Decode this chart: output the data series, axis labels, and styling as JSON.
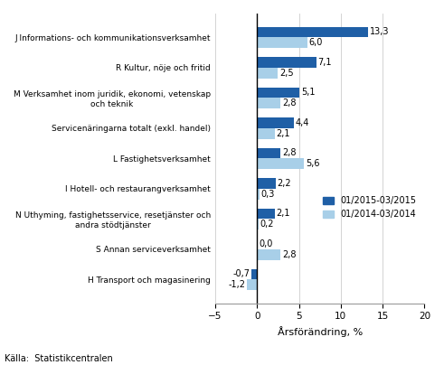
{
  "categories": [
    "H Transport och magasinering",
    "S Annan serviceverksamhet",
    "N Uthyming, fastighetsservice, resetjänster och\nandra stödtjänster",
    "I Hotell- och restaurangverksamhet",
    "L Fastighetsverksamhet",
    "Servicenäringarna totalt (exkl. handel)",
    "M Verksamhet inom juridik, ekonomi, vetenskap\noch teknik",
    "R Kultur, nöje och fritid",
    "J Informations- och kommunikationsverksamhet"
  ],
  "values_2015": [
    -0.7,
    0.0,
    2.1,
    2.2,
    2.8,
    4.4,
    5.1,
    7.1,
    13.3
  ],
  "values_2014": [
    -1.2,
    2.8,
    0.2,
    0.3,
    5.6,
    2.1,
    2.8,
    2.5,
    6.0
  ],
  "labels_2015": [
    "-0,7",
    "0,0",
    "2,1",
    "2,2",
    "2,8",
    "4,4",
    "5,1",
    "7,1",
    "13,3"
  ],
  "labels_2014": [
    "-1,2",
    "2,8",
    "0,2",
    "0,3",
    "5,6",
    "2,1",
    "2,8",
    "2,5",
    "6,0"
  ],
  "color_2015": "#1f5fa6",
  "color_2014": "#a8cfe8",
  "legend_2015": "01/2015-03/2015",
  "legend_2014": "01/2014-03/2014",
  "xlabel": "Årsförändring, %",
  "source": "Källa:  Statistikcentralen",
  "xlim": [
    -5,
    20
  ],
  "xticks": [
    -5,
    0,
    5,
    10,
    15,
    20
  ]
}
